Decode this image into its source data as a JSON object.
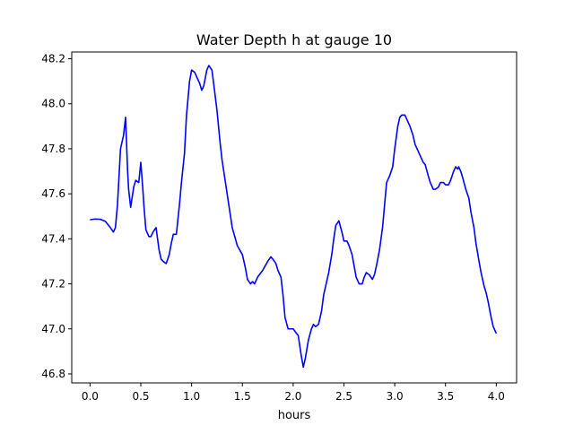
{
  "chart_data": {
    "type": "line",
    "title": "Water Depth h at gauge 10",
    "xlabel": "hours",
    "ylabel": "",
    "xlim": [
      -0.18,
      4.2
    ],
    "ylim": [
      46.76,
      48.23
    ],
    "xticks": [
      0.0,
      0.5,
      1.0,
      1.5,
      2.0,
      2.5,
      3.0,
      3.5,
      4.0
    ],
    "xtick_labels": [
      "0.0",
      "0.5",
      "1.0",
      "1.5",
      "2.0",
      "2.5",
      "3.0",
      "3.5",
      "4.0"
    ],
    "yticks": [
      46.8,
      47.0,
      47.2,
      47.4,
      47.6,
      47.8,
      48.0,
      48.2
    ],
    "ytick_labels": [
      "46.8",
      "47.0",
      "47.2",
      "47.4",
      "47.6",
      "47.8",
      "48.0",
      "48.2"
    ],
    "grid": false,
    "colors": {
      "line": "#0000ff"
    },
    "series": [
      {
        "x": [
          0.0,
          0.05,
          0.1,
          0.15,
          0.2,
          0.23,
          0.25,
          0.27,
          0.3,
          0.31,
          0.33,
          0.35,
          0.37,
          0.38,
          0.4,
          0.42,
          0.43,
          0.45,
          0.48,
          0.5,
          0.52,
          0.53,
          0.55,
          0.58,
          0.6,
          0.62,
          0.65,
          0.68,
          0.7,
          0.72,
          0.75,
          0.78,
          0.8,
          0.82,
          0.85,
          0.88,
          0.9,
          0.93,
          0.95,
          0.98,
          1.0,
          1.03,
          1.05,
          1.08,
          1.1,
          1.12,
          1.15,
          1.17,
          1.2,
          1.22,
          1.25,
          1.28,
          1.3,
          1.35,
          1.4,
          1.45,
          1.5,
          1.53,
          1.55,
          1.58,
          1.6,
          1.62,
          1.65,
          1.7,
          1.75,
          1.78,
          1.8,
          1.83,
          1.85,
          1.88,
          1.9,
          1.92,
          1.95,
          1.98,
          2.0,
          2.05,
          2.08,
          2.1,
          2.12,
          2.15,
          2.18,
          2.2,
          2.22,
          2.25,
          2.28,
          2.3,
          2.35,
          2.38,
          2.4,
          2.42,
          2.45,
          2.48,
          2.5,
          2.53,
          2.55,
          2.58,
          2.6,
          2.62,
          2.65,
          2.68,
          2.7,
          2.72,
          2.75,
          2.78,
          2.8,
          2.82,
          2.85,
          2.88,
          2.9,
          2.92,
          2.95,
          2.98,
          3.0,
          3.03,
          3.05,
          3.07,
          3.1,
          3.13,
          3.15,
          3.18,
          3.2,
          3.22,
          3.25,
          3.28,
          3.3,
          3.33,
          3.35,
          3.38,
          3.4,
          3.43,
          3.45,
          3.48,
          3.5,
          3.53,
          3.55,
          3.58,
          3.6,
          3.62,
          3.63,
          3.65,
          3.67,
          3.7,
          3.73,
          3.75,
          3.78,
          3.8,
          3.83,
          3.85,
          3.88,
          3.9,
          3.92,
          3.95,
          3.97,
          4.0
        ],
        "y": [
          47.485,
          47.488,
          47.487,
          47.478,
          47.45,
          47.43,
          47.45,
          47.55,
          47.8,
          47.82,
          47.86,
          47.94,
          47.7,
          47.62,
          47.54,
          47.6,
          47.63,
          47.66,
          47.65,
          47.74,
          47.62,
          47.55,
          47.44,
          47.41,
          47.41,
          47.43,
          47.45,
          47.35,
          47.31,
          47.3,
          47.29,
          47.33,
          47.38,
          47.42,
          47.42,
          47.55,
          47.65,
          47.78,
          47.95,
          48.1,
          48.15,
          48.14,
          48.12,
          48.09,
          48.06,
          48.08,
          48.15,
          48.17,
          48.15,
          48.08,
          47.97,
          47.83,
          47.75,
          47.6,
          47.45,
          47.37,
          47.33,
          47.27,
          47.22,
          47.2,
          47.21,
          47.2,
          47.23,
          47.26,
          47.3,
          47.32,
          47.31,
          47.29,
          47.26,
          47.23,
          47.15,
          47.05,
          47.0,
          47.0,
          47.0,
          46.97,
          46.88,
          46.83,
          46.87,
          46.95,
          47.0,
          47.02,
          47.01,
          47.02,
          47.08,
          47.15,
          47.25,
          47.33,
          47.4,
          47.46,
          47.48,
          47.43,
          47.39,
          47.39,
          47.37,
          47.33,
          47.28,
          47.23,
          47.2,
          47.2,
          47.23,
          47.25,
          47.24,
          47.22,
          47.24,
          47.28,
          47.35,
          47.45,
          47.55,
          47.65,
          47.68,
          47.72,
          47.8,
          47.9,
          47.94,
          47.95,
          47.95,
          47.92,
          47.9,
          47.86,
          47.82,
          47.8,
          47.77,
          47.74,
          47.73,
          47.68,
          47.65,
          47.62,
          47.62,
          47.63,
          47.65,
          47.65,
          47.64,
          47.64,
          47.66,
          47.7,
          47.72,
          47.71,
          47.72,
          47.7,
          47.67,
          47.62,
          47.58,
          47.52,
          47.45,
          47.38,
          47.3,
          47.25,
          47.19,
          47.16,
          47.12,
          47.05,
          47.01,
          46.98
        ]
      }
    ]
  }
}
